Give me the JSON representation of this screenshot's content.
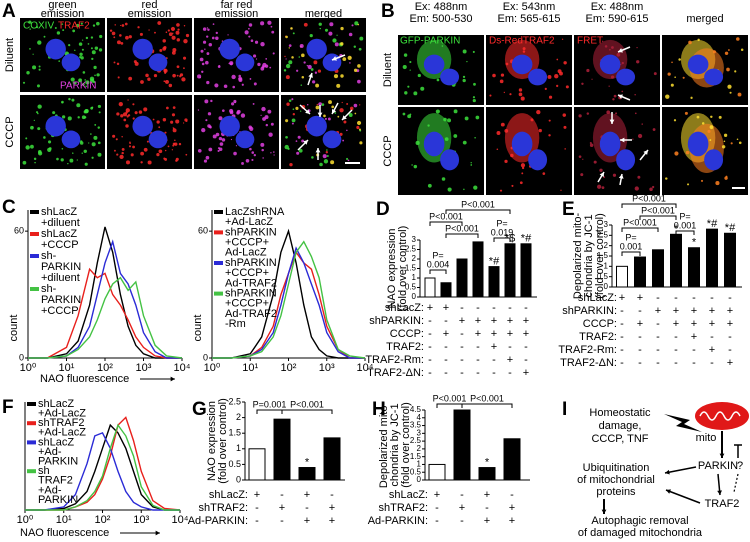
{
  "panel_a": {
    "label": "A",
    "columns": [
      [
        "green",
        "emission"
      ],
      [
        "red",
        "emission"
      ],
      [
        "far red",
        "emission"
      ],
      [
        "merged"
      ]
    ],
    "rows": [
      "Diluent",
      "CCCP"
    ],
    "stains": [
      "COXIV",
      "TRAF2",
      "PARKIN"
    ]
  },
  "panel_b": {
    "label": "B",
    "columns": [
      [
        "Ex: 488nm",
        "Em: 500-530"
      ],
      [
        "Ex: 543nm",
        "Em: 565-615"
      ],
      [
        "Ex: 488nm",
        "Em: 590-615"
      ],
      [
        "merged"
      ]
    ],
    "rows": [
      "Diluent",
      "CCCP"
    ],
    "stains": [
      "GFP-PARKIN",
      "Ds-RedTRAF2",
      "FRET"
    ]
  },
  "panel_c": {
    "label": "C",
    "xlabel": "NAO fluorescence",
    "plots": [
      {
        "type": "line",
        "ylabel": "count",
        "ylim": [
          0,
          70
        ],
        "yticks": [
          0,
          60
        ],
        "xlim": [
          0,
          4
        ],
        "xticks": [
          {
            "value": 0,
            "label": "10⁰"
          },
          {
            "value": 1,
            "label": "10¹"
          },
          {
            "value": 2,
            "label": "10²"
          },
          {
            "value": 3,
            "label": "10³"
          },
          {
            "value": 4,
            "label": "10⁴"
          }
        ],
        "x": [
          0,
          0.5,
          1,
          1.3,
          1.6,
          1.8,
          2,
          2.2,
          2.4,
          2.6,
          2.8,
          3,
          3.3,
          3.6,
          4
        ],
        "series": [
          {
            "name": [
              "shLacZ",
              "+diluent"
            ],
            "color": "#000000",
            "values": [
              0,
              0,
              2,
              8,
              25,
              45,
              62,
              50,
              30,
              15,
              6,
              2,
              0,
              0,
              0
            ]
          },
          {
            "name": [
              "shLacZ",
              "+CCCP"
            ],
            "color": "#e8201c",
            "values": [
              0,
              0,
              5,
              20,
              42,
              38,
              40,
              30,
              25,
              18,
              10,
              5,
              1,
              0,
              0
            ]
          },
          {
            "name": [
              "sh-",
              "PARKIN",
              "+diluent"
            ],
            "color": "#2b2bd6",
            "values": [
              0,
              0,
              1,
              5,
              15,
              30,
              45,
              55,
              40,
              35,
              25,
              12,
              3,
              0,
              0
            ]
          },
          {
            "name": [
              "sh-",
              "PARKIN",
              "+CCCP"
            ],
            "color": "#44c244",
            "values": [
              0,
              0,
              1,
              4,
              10,
              18,
              28,
              35,
              38,
              32,
              36,
              20,
              6,
              1,
              0
            ]
          }
        ]
      },
      {
        "type": "line",
        "ylabel": "count",
        "ylim": [
          0,
          70
        ],
        "yticks": [
          0,
          60
        ],
        "xlim": [
          0,
          4
        ],
        "xticks": [
          {
            "value": 0,
            "label": "10⁰"
          },
          {
            "value": 1,
            "label": "10¹"
          },
          {
            "value": 2,
            "label": "10²"
          },
          {
            "value": 3,
            "label": "10³"
          },
          {
            "value": 4,
            "label": "10⁴"
          }
        ],
        "x": [
          0,
          0.5,
          1,
          1.3,
          1.6,
          1.8,
          2,
          2.2,
          2.4,
          2.6,
          2.8,
          3,
          3.3,
          3.6,
          4
        ],
        "series": [
          {
            "name": [
              "LacZshRNA",
              "+Ad-LacZ"
            ],
            "color": "#000000",
            "values": [
              0,
              0,
              2,
              10,
              30,
              50,
              60,
              45,
              25,
              10,
              4,
              1,
              0,
              0,
              0
            ]
          },
          {
            "name": [
              "shPARKIN",
              "+CCCP+",
              "Ad-LacZ"
            ],
            "color": "#e8201c",
            "values": [
              0,
              0,
              1,
              5,
              15,
              30,
              40,
              50,
              45,
              42,
              30,
              15,
              4,
              0,
              0
            ]
          },
          {
            "name": [
              "shPARKIN",
              "+CCCP+",
              "Ad-TRAF2"
            ],
            "color": "#2b2bd6",
            "values": [
              0,
              0,
              1,
              4,
              12,
              25,
              40,
              52,
              45,
              35,
              25,
              12,
              3,
              0,
              0
            ]
          },
          {
            "name": [
              "shPARKIN",
              "+CCCP+",
              "Ad-TRAF2",
              "-Rm"
            ],
            "color": "#44c244",
            "values": [
              0,
              0,
              1,
              3,
              10,
              20,
              35,
              50,
              55,
              48,
              38,
              18,
              4,
              1,
              0
            ]
          }
        ]
      }
    ]
  },
  "panel_d": {
    "label": "D",
    "type": "bar",
    "ylabel": [
      "NAO expression",
      "(fold over control)"
    ],
    "ylim": [
      0,
      3
    ],
    "yticks": [
      0,
      0.5,
      1,
      1.5,
      2,
      2.5,
      3
    ],
    "values": [
      1,
      0.75,
      2,
      2.9,
      1.6,
      2.8,
      2.8
    ],
    "colors": [
      "#ffffff",
      "#000000",
      "#000000",
      "#000000",
      "#000000",
      "#000000",
      "#000000"
    ],
    "bar_labels": [
      null,
      null,
      null,
      null,
      "*#",
      "*$",
      "*#"
    ],
    "p_values": [
      [
        "P<0.001"
      ],
      [
        "P<0.001"
      ],
      [
        "P<0.001"
      ],
      [
        "P=",
        "0.004"
      ],
      [
        "P=",
        "0.019"
      ]
    ],
    "conditions": [
      {
        "name": "shLacZ:",
        "signs": [
          "+",
          "+",
          "-",
          "-",
          "-",
          "-",
          "-"
        ]
      },
      {
        "name": "shPARKIN:",
        "signs": [
          "-",
          "-",
          "+",
          "+",
          "+",
          "+",
          "+"
        ]
      },
      {
        "name": "CCCP:",
        "signs": [
          "-",
          "+",
          "-",
          "+",
          "+",
          "+",
          "+"
        ]
      },
      {
        "name": "TRAF2:",
        "signs": [
          "-",
          "-",
          "-",
          "-",
          "+",
          "-",
          "-"
        ]
      },
      {
        "name": "TRAF2-Rm:",
        "signs": [
          "-",
          "-",
          "-",
          "-",
          "-",
          "+",
          "-"
        ]
      },
      {
        "name": "TRAF2-ΔN:",
        "signs": [
          "-",
          "-",
          "-",
          "-",
          "-",
          "-",
          "+"
        ]
      }
    ]
  },
  "panel_e": {
    "label": "E",
    "type": "bar",
    "ylabel": [
      "Depolarized mito-",
      "chondria by JC-1",
      "(fold over control)"
    ],
    "ylim": [
      0,
      3
    ],
    "yticks": [
      0,
      0.5,
      1,
      1.5,
      2,
      2.5,
      3
    ],
    "values": [
      1,
      1.45,
      1.8,
      2.55,
      1.9,
      2.8,
      2.6
    ],
    "colors": [
      "#ffffff",
      "#000000",
      "#000000",
      "#000000",
      "#000000",
      "#000000",
      "#000000"
    ],
    "bar_labels": [
      null,
      null,
      null,
      "*",
      "*",
      "*#",
      "*#"
    ],
    "p_values": [
      [
        "P<0.001"
      ],
      [
        "P<0.001"
      ],
      [
        "P<0.001"
      ],
      [
        "P=",
        "0.001"
      ],
      [
        "P=",
        "0.001"
      ]
    ],
    "conditions": [
      {
        "name": "shLacZ:",
        "signs": [
          "+",
          "+",
          "-",
          "-",
          "-",
          "-",
          "-"
        ]
      },
      {
        "name": "shPARKIN:",
        "signs": [
          "-",
          "-",
          "+",
          "+",
          "+",
          "+",
          "+"
        ]
      },
      {
        "name": "CCCP:",
        "signs": [
          "-",
          "+",
          "-",
          "+",
          "+",
          "+",
          "+"
        ]
      },
      {
        "name": "TRAF2:",
        "signs": [
          "-",
          "-",
          "-",
          "-",
          "+",
          "-",
          "-"
        ]
      },
      {
        "name": "TRAF2-Rm:",
        "signs": [
          "-",
          "-",
          "-",
          "-",
          "-",
          "+",
          "-"
        ]
      },
      {
        "name": "TRAF2-ΔN:",
        "signs": [
          "-",
          "-",
          "-",
          "-",
          "-",
          "-",
          "+"
        ]
      }
    ]
  },
  "panel_f": {
    "label": "F",
    "type": "line",
    "xlabel": "NAO fluorescence",
    "ylim": [
      0,
      70
    ],
    "xlim": [
      0,
      4
    ],
    "xticks": [
      {
        "value": 0,
        "label": "10⁰"
      },
      {
        "value": 1,
        "label": "10¹"
      },
      {
        "value": 2,
        "label": "10²"
      },
      {
        "value": 3,
        "label": "10³"
      },
      {
        "value": 4,
        "label": "10⁴"
      }
    ],
    "x": [
      0,
      0.5,
      1,
      1.3,
      1.6,
      1.8,
      2,
      2.2,
      2.4,
      2.6,
      2.8,
      3,
      3.3,
      3.6,
      4
    ],
    "series": [
      {
        "name": [
          "shLacZ",
          "+Ad-LacZ"
        ],
        "color": "#000000",
        "values": [
          0,
          0,
          1,
          4,
          12,
          25,
          40,
          55,
          50,
          40,
          25,
          10,
          2,
          0,
          0
        ]
      },
      {
        "name": [
          "shTRAF2",
          "+Ad-LacZ"
        ],
        "color": "#e8201c",
        "values": [
          0,
          0,
          0,
          2,
          5,
          10,
          20,
          35,
          55,
          60,
          45,
          25,
          6,
          1,
          0
        ]
      },
      {
        "name": [
          "shLacZ",
          "+Ad-",
          "PARKIN"
        ],
        "color": "#2b2bd6",
        "values": [
          0,
          0,
          2,
          10,
          30,
          48,
          50,
          40,
          25,
          12,
          5,
          2,
          0,
          0,
          0
        ]
      },
      {
        "name": [
          "sh",
          "TRAF2",
          "+Ad-",
          "PARKIN"
        ],
        "color": "#44c244",
        "values": [
          0,
          0,
          0,
          2,
          6,
          12,
          22,
          40,
          55,
          48,
          35,
          15,
          3,
          0,
          0
        ]
      }
    ]
  },
  "panel_g": {
    "label": "G",
    "type": "bar",
    "ylabel": [
      "NAO expression",
      "(fold over control)"
    ],
    "ylim": [
      0,
      2.5
    ],
    "yticks": [
      0,
      0.5,
      1,
      1.5,
      2,
      2.5
    ],
    "values": [
      1,
      1.95,
      0.4,
      1.35
    ],
    "colors": [
      "#ffffff",
      "#000000",
      "#000000",
      "#000000"
    ],
    "bar_labels": [
      null,
      null,
      "*",
      null
    ],
    "p_values": [
      [
        "P=0.001"
      ],
      [
        "P<0.001"
      ]
    ],
    "conditions": [
      {
        "name": "shLacZ:",
        "signs": [
          "+",
          "-",
          "+",
          "-"
        ]
      },
      {
        "name": "shTRAF2:",
        "signs": [
          "-",
          "+",
          "-",
          "+"
        ]
      },
      {
        "name": "Ad-PARKIN:",
        "signs": [
          "-",
          "-",
          "+",
          "+"
        ]
      }
    ]
  },
  "panel_h": {
    "label": "H",
    "type": "bar",
    "ylabel": [
      "Depolarized mito-",
      "chondria by JC-1",
      "(fold over control)"
    ],
    "ylim": [
      0,
      4.5
    ],
    "yticks": [
      0,
      0.5,
      1,
      1.5,
      2,
      2.5,
      3,
      3.5,
      4,
      4.5
    ],
    "values": [
      1,
      4.5,
      0.8,
      2.65
    ],
    "colors": [
      "#ffffff",
      "#000000",
      "#000000",
      "#000000"
    ],
    "bar_labels": [
      null,
      null,
      "*",
      null
    ],
    "p_values": [
      [
        "P<0.001"
      ],
      [
        "P<0.001"
      ]
    ],
    "conditions": [
      {
        "name": "shLacZ:",
        "signs": [
          "+",
          "-",
          "+",
          "-"
        ]
      },
      {
        "name": "shTRAF2:",
        "signs": [
          "-",
          "+",
          "-",
          "+"
        ]
      },
      {
        "name": "Ad-PARKIN:",
        "signs": [
          "-",
          "-",
          "+",
          "+"
        ]
      }
    ]
  },
  "panel_i": {
    "label": "I",
    "nodes": {
      "stress": [
        "Homeostatic",
        "damage,",
        "CCCP, TNF"
      ],
      "mito": "mito",
      "parkin": "PARKIN",
      "question": "?",
      "ubiquitination": [
        "Ubiquitination",
        "of mitochondrial",
        "proteins"
      ],
      "traf2": "TRAF2",
      "autophagy": [
        "Autophagic removal",
        "of damaged mitochondria"
      ]
    }
  }
}
